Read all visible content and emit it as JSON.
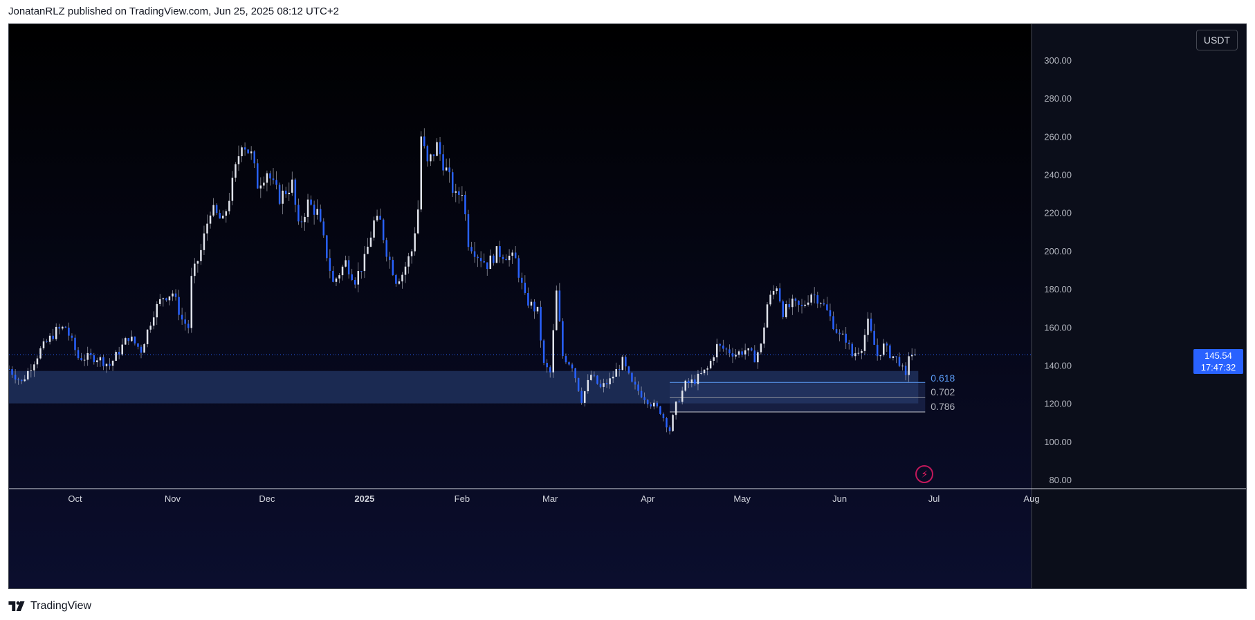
{
  "header": {
    "caption": "JonatanRLZ published on TradingView.com, Jun 25, 2025 08:12 UTC+2"
  },
  "footer": {
    "brand": "TradingView",
    "logo_icon": "tradingview-logo-icon"
  },
  "toolbar": {
    "currency": "USDT"
  },
  "colors": {
    "background": "#0b0e1a",
    "up_candle": "#e0e3eb",
    "down_candle": "#2962ff",
    "zone": "#1c2c55",
    "accent": "#2962ff"
  },
  "price_tag": {
    "price": "145.54",
    "countdown": "17:47:32"
  },
  "fib_levels": [
    {
      "label": "0.618",
      "color": "#5b9cf6"
    },
    {
      "label": "0.702",
      "color": "#b2b5be"
    },
    {
      "label": "0.786",
      "color": "#b2b5be"
    }
  ],
  "chart_data": {
    "type": "candlestick",
    "title": "",
    "xlabel": "",
    "ylabel": "",
    "ylim": [
      80,
      310
    ],
    "y_ticks": [
      "300.00",
      "280.00",
      "260.00",
      "240.00",
      "220.00",
      "200.00",
      "180.00",
      "160.00",
      "140.00",
      "120.00",
      "100.00",
      "80.00"
    ],
    "x_ticks": [
      "Oct",
      "Nov",
      "Dec",
      "2025",
      "Feb",
      "Mar",
      "Apr",
      "May",
      "Jun",
      "Jul",
      "Aug"
    ],
    "x_tick_dates": [
      "2024-10-01",
      "2024-11-01",
      "2024-12-01",
      "2025-01-01",
      "2025-02-01",
      "2025-03-01",
      "2025-04-01",
      "2025-05-01",
      "2025-06-01",
      "2025-07-01",
      "2025-08-01"
    ],
    "xlim": [
      "2024-09-10",
      "2025-08-01"
    ],
    "last_price": 145.54,
    "grid": false,
    "support_zone": {
      "from": "2024-09-10",
      "to": "2025-06-26",
      "low": 120,
      "high": 137
    },
    "fib_zone": {
      "from": "2025-04-08",
      "to": "2025-06-26",
      "levels": [
        131,
        123,
        115.5
      ]
    },
    "anchors": [
      [
        "2024-09-10",
        138
      ],
      [
        "2024-09-14",
        131
      ],
      [
        "2024-09-20",
        148
      ],
      [
        "2024-09-25",
        158
      ],
      [
        "2024-09-28",
        160
      ],
      [
        "2024-10-02",
        144
      ],
      [
        "2024-10-08",
        144
      ],
      [
        "2024-10-12",
        140
      ],
      [
        "2024-10-18",
        155
      ],
      [
        "2024-10-22",
        148
      ],
      [
        "2024-10-26",
        168
      ],
      [
        "2024-10-29",
        176
      ],
      [
        "2024-11-01",
        178
      ],
      [
        "2024-11-04",
        164
      ],
      [
        "2024-11-06",
        160
      ],
      [
        "2024-11-07",
        185
      ],
      [
        "2024-11-10",
        200
      ],
      [
        "2024-11-13",
        222
      ],
      [
        "2024-11-17",
        215
      ],
      [
        "2024-11-20",
        235
      ],
      [
        "2024-11-23",
        258
      ],
      [
        "2024-11-26",
        250
      ],
      [
        "2024-11-28",
        235
      ],
      [
        "2024-12-01",
        242
      ],
      [
        "2024-12-03",
        234
      ],
      [
        "2024-12-05",
        228
      ],
      [
        "2024-12-09",
        235
      ],
      [
        "2024-12-11",
        212
      ],
      [
        "2024-12-14",
        225
      ],
      [
        "2024-12-17",
        220
      ],
      [
        "2024-12-20",
        198
      ],
      [
        "2024-12-22",
        183
      ],
      [
        "2024-12-26",
        194
      ],
      [
        "2024-12-29",
        185
      ],
      [
        "2025-01-01",
        195
      ],
      [
        "2025-01-04",
        215
      ],
      [
        "2025-01-06",
        215
      ],
      [
        "2025-01-08",
        200
      ],
      [
        "2025-01-11",
        185
      ],
      [
        "2025-01-13",
        188
      ],
      [
        "2025-01-16",
        200
      ],
      [
        "2025-01-18",
        222
      ],
      [
        "2025-01-19",
        260
      ],
      [
        "2025-01-21",
        245
      ],
      [
        "2025-01-24",
        255
      ],
      [
        "2025-01-27",
        242
      ],
      [
        "2025-01-30",
        228
      ],
      [
        "2025-02-01",
        232
      ],
      [
        "2025-02-03",
        205
      ],
      [
        "2025-02-06",
        198
      ],
      [
        "2025-02-09",
        193
      ],
      [
        "2025-02-12",
        199
      ],
      [
        "2025-02-15",
        198
      ],
      [
        "2025-02-18",
        195
      ],
      [
        "2025-02-21",
        175
      ],
      [
        "2025-02-25",
        168
      ],
      [
        "2025-02-27",
        140
      ],
      [
        "2025-03-01",
        136
      ],
      [
        "2025-03-03",
        178
      ],
      [
        "2025-03-05",
        145
      ],
      [
        "2025-03-08",
        140
      ],
      [
        "2025-03-11",
        122
      ],
      [
        "2025-03-14",
        135
      ],
      [
        "2025-03-17",
        128
      ],
      [
        "2025-03-20",
        132
      ],
      [
        "2025-03-24",
        142
      ],
      [
        "2025-03-27",
        130
      ],
      [
        "2025-03-30",
        125
      ],
      [
        "2025-04-02",
        120
      ],
      [
        "2025-04-05",
        116
      ],
      [
        "2025-04-08",
        106
      ],
      [
        "2025-04-10",
        119
      ],
      [
        "2025-04-13",
        130
      ],
      [
        "2025-04-16",
        132
      ],
      [
        "2025-04-20",
        138
      ],
      [
        "2025-04-23",
        150
      ],
      [
        "2025-04-26",
        148
      ],
      [
        "2025-04-29",
        146
      ],
      [
        "2025-05-02",
        148
      ],
      [
        "2025-05-05",
        144
      ],
      [
        "2025-05-07",
        150
      ],
      [
        "2025-05-09",
        172
      ],
      [
        "2025-05-12",
        182
      ],
      [
        "2025-05-14",
        168
      ],
      [
        "2025-05-17",
        172
      ],
      [
        "2025-05-20",
        170
      ],
      [
        "2025-05-23",
        178
      ],
      [
        "2025-05-26",
        174
      ],
      [
        "2025-05-29",
        165
      ],
      [
        "2025-06-01",
        155
      ],
      [
        "2025-06-03",
        154
      ],
      [
        "2025-06-05",
        145
      ],
      [
        "2025-06-08",
        150
      ],
      [
        "2025-06-10",
        162
      ],
      [
        "2025-06-13",
        145
      ],
      [
        "2025-06-15",
        150
      ],
      [
        "2025-06-17",
        146
      ],
      [
        "2025-06-20",
        142
      ],
      [
        "2025-06-22",
        133
      ],
      [
        "2025-06-23",
        146
      ],
      [
        "2025-06-25",
        145.54
      ]
    ]
  }
}
